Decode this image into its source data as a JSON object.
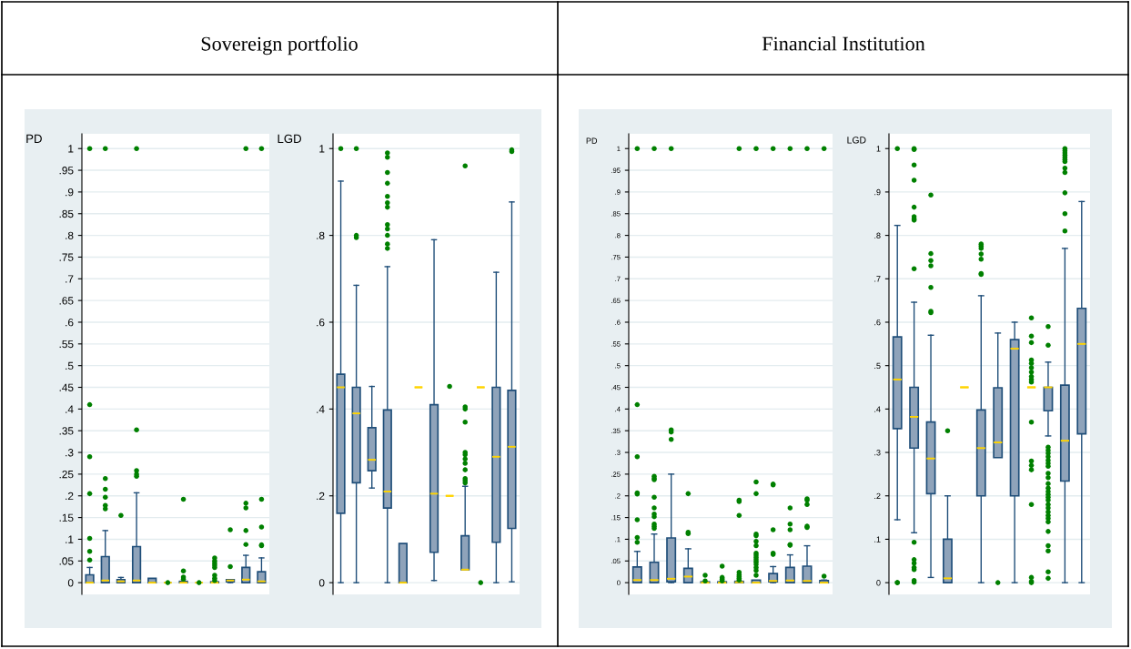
{
  "chart_data": [
    {
      "type": "box",
      "title": "Sovereign portfolio",
      "ylabel": "PD",
      "categories": [
        null,
        null,
        null,
        null,
        null,
        null,
        null,
        null,
        null,
        null,
        null,
        null
      ],
      "ylim": [
        -0.027,
        1.034
      ],
      "yticks": [
        0,
        {
          "value": 0.05,
          "label": ".05"
        },
        {
          "value": 0.1,
          "label": ".1"
        },
        {
          "value": 0.15,
          "label": ".15"
        },
        {
          "value": 0.2,
          "label": ".2"
        },
        {
          "value": 0.25,
          "label": ".25"
        },
        {
          "value": 0.3,
          "label": ".3"
        },
        {
          "value": 0.35,
          "label": ".35"
        },
        {
          "value": 0.4,
          "label": ".4"
        },
        {
          "value": 0.45,
          "label": ".45"
        },
        {
          "value": 0.5,
          "label": ".5"
        },
        {
          "value": 0.55,
          "label": ".55"
        },
        {
          "value": 0.6,
          "label": ".6"
        },
        {
          "value": 0.65,
          "label": ".65"
        },
        {
          "value": 0.7,
          "label": ".7"
        },
        {
          "value": 0.75,
          "label": ".75"
        },
        {
          "value": 0.8,
          "label": ".8"
        },
        {
          "value": 0.85,
          "label": ".85"
        },
        {
          "value": 0.9,
          "label": ".9"
        },
        {
          "value": 0.95,
          "label": ".95"
        },
        1
      ],
      "grid": "y",
      "tick_labels": "y",
      "colors": [
        "#8fa3ba",
        "#8fa3ba",
        "#8fa3ba",
        "#8fa3ba",
        "#8fa3ba",
        "#8fa3ba",
        "#8fa3ba",
        "#8fa3ba",
        "#8fa3ba",
        "#8fa3ba",
        "#8fa3ba",
        "#8fa3ba"
      ],
      "boxes": [
        {
          "low": 0,
          "q1": 0,
          "median": 0,
          "q3": 0.018,
          "high": 0.035,
          "outliers": [
            1,
            0.41,
            0.29,
            0.205,
            0.102,
            0.072,
            0.052
          ]
        },
        {
          "low": 0,
          "q1": 0,
          "median": 0.005,
          "q3": 0.06,
          "high": 0.12,
          "outliers": [
            1,
            0.24,
            0.215,
            0.197,
            0.178,
            0.17
          ]
        },
        {
          "low": 0,
          "q1": 0,
          "median": 0.003,
          "q3": 0.007,
          "high": 0.012,
          "outliers": [
            0.155
          ]
        },
        {
          "low": 0,
          "q1": 0,
          "median": 0.005,
          "q3": 0.083,
          "high": 0.207,
          "outliers": [
            1,
            0.352,
            0.258,
            0.25,
            0.245
          ]
        },
        {
          "low": 0,
          "q1": 0,
          "median": 0,
          "q3": 0.01,
          "high": 0.01
        },
        {
          "low": 0,
          "q1": 0,
          "median": 0,
          "q3": 0,
          "high": 0,
          "outliers": [
            0
          ]
        },
        {
          "low": 0,
          "q1": 0,
          "median": 0,
          "q3": 0.003,
          "high": 0.003,
          "outliers": [
            0.192,
            0.027,
            0.013,
            0.008
          ]
        },
        {
          "low": 0,
          "q1": 0,
          "median": 0,
          "q3": 0,
          "high": 0,
          "outliers": [
            0
          ]
        },
        {
          "low": 0,
          "q1": 0,
          "median": 0,
          "q3": 0.002,
          "high": 0.002,
          "outliers": [
            0.057,
            0.05,
            0.045,
            0.04,
            0.035,
            0.017,
            0.01,
            0.005
          ]
        },
        {
          "low": 0,
          "q1": 0.002,
          "median": 0.005,
          "q3": 0.007,
          "high": 0.007,
          "outliers": [
            0.122,
            0.037
          ]
        },
        {
          "low": 0,
          "q1": 0,
          "median": 0.007,
          "q3": 0.035,
          "high": 0.063,
          "outliers": [
            1,
            0.183,
            0.172,
            0.12,
            0.088
          ]
        },
        {
          "low": 0,
          "q1": 0,
          "median": 0.003,
          "q3": 0.025,
          "high": 0.057,
          "outliers": [
            1,
            0.192,
            0.128,
            0.087,
            0.085
          ]
        }
      ]
    },
    {
      "type": "box",
      "ylabel": "LGD",
      "categories": [
        null,
        null,
        null,
        null,
        null,
        null,
        null,
        null,
        null,
        null,
        null,
        null
      ],
      "ylim": [
        -0.027,
        1.034
      ],
      "yticks": [
        0,
        {
          "value": 0.2,
          "label": ".2"
        },
        {
          "value": 0.4,
          "label": ".4"
        },
        {
          "value": 0.6,
          "label": ".6"
        },
        {
          "value": 0.8,
          "label": ".8"
        },
        1
      ],
      "grid": "y",
      "tick_labels": "y",
      "colors": [
        "#8fa3ba",
        "#8fa3ba",
        "#8fa3ba",
        "#8fa3ba",
        "#8fa3ba",
        "#ffd400",
        "#8fa3ba",
        "#ffd400",
        "#8fa3ba",
        "#ffd400",
        "#8fa3ba",
        "#8fa3ba"
      ],
      "boxes": [
        {
          "low": 0,
          "q1": 0.16,
          "median": 0.45,
          "q3": 0.48,
          "high": 0.925,
          "outliers": [
            1
          ]
        },
        {
          "low": 0,
          "q1": 0.23,
          "median": 0.39,
          "q3": 0.45,
          "high": 0.685,
          "outliers": [
            1,
            0.8,
            0.795
          ]
        },
        {
          "low": 0.218,
          "q1": 0.258,
          "median": 0.283,
          "q3": 0.357,
          "high": 0.452
        },
        {
          "low": 0,
          "q1": 0.172,
          "median": 0.21,
          "q3": 0.398,
          "high": 0.728,
          "outliers": [
            0.99,
            0.98,
            0.945,
            0.92,
            0.89,
            0.875,
            0.865,
            0.825,
            0.815,
            0.8,
            0.78,
            0.77
          ]
        },
        {
          "low": 0,
          "q1": 0,
          "median": 0,
          "q3": 0.09,
          "high": 0.09
        },
        {
          "low": 0.45,
          "q1": 0.45,
          "median": 0.45,
          "q3": 0.45,
          "high": 0.45
        },
        {
          "low": 0.005,
          "q1": 0.07,
          "median": 0.205,
          "q3": 0.41,
          "high": 0.79
        },
        {
          "low": 0.2,
          "q1": 0.2,
          "median": 0.2,
          "q3": 0.2,
          "high": 0.2,
          "outliers": [
            0.452
          ]
        },
        {
          "low": 0.03,
          "q1": 0.03,
          "median": 0.03,
          "q3": 0.108,
          "high": 0.222,
          "outliers": [
            0.96,
            0.405,
            0.4,
            0.37,
            0.3,
            0.295,
            0.285,
            0.275,
            0.26,
            0.24,
            0.235,
            0.23
          ]
        },
        {
          "low": 0.45,
          "q1": 0.45,
          "median": 0.45,
          "q3": 0.45,
          "high": 0.45,
          "outliers": [
            0
          ]
        },
        {
          "low": 0,
          "q1": 0.093,
          "median": 0.29,
          "q3": 0.45,
          "high": 0.715
        },
        {
          "low": 0.002,
          "q1": 0.125,
          "median": 0.313,
          "q3": 0.443,
          "high": 0.877,
          "outliers": [
            0.997,
            0.993
          ]
        }
      ]
    },
    {
      "type": "box",
      "title": "Financial Institution",
      "ylabel": "PD",
      "categories": [
        null,
        null,
        null,
        null,
        null,
        null,
        null,
        null,
        null,
        null,
        null,
        null
      ],
      "ylim": [
        -0.027,
        1.034
      ],
      "yticks": [
        0,
        {
          "value": 0.05,
          "label": ".05"
        },
        {
          "value": 0.1,
          "label": ".1"
        },
        {
          "value": 0.15,
          "label": ".15"
        },
        {
          "value": 0.2,
          "label": ".2"
        },
        {
          "value": 0.25,
          "label": ".25"
        },
        {
          "value": 0.3,
          "label": ".3"
        },
        {
          "value": 0.35,
          "label": ".35"
        },
        {
          "value": 0.4,
          "label": ".4"
        },
        {
          "value": 0.45,
          "label": ".45"
        },
        {
          "value": 0.5,
          "label": ".5"
        },
        {
          "value": 0.55,
          "label": ".55"
        },
        {
          "value": 0.6,
          "label": ".6"
        },
        {
          "value": 0.65,
          "label": ".65"
        },
        {
          "value": 0.7,
          "label": ".7"
        },
        {
          "value": 0.75,
          "label": ".75"
        },
        {
          "value": 0.8,
          "label": ".8"
        },
        {
          "value": 0.85,
          "label": ".85"
        },
        {
          "value": 0.9,
          "label": ".9"
        },
        {
          "value": 0.95,
          "label": ".95"
        },
        1
      ],
      "grid": "y",
      "tick_labels": "y",
      "colors": [
        "#8fa3ba",
        "#8fa3ba",
        "#8fa3ba",
        "#8fa3ba",
        "#8fa3ba",
        "#8fa3ba",
        "#8fa3ba",
        "#8fa3ba",
        "#8fa3ba",
        "#8fa3ba",
        "#8fa3ba",
        "#8fa3ba"
      ],
      "boxes": [
        {
          "low": 0,
          "q1": 0,
          "median": 0.006,
          "q3": 0.036,
          "high": 0.072,
          "outliers": [
            1,
            0.41,
            0.29,
            0.207,
            0.204,
            0.145,
            0.104,
            0.093
          ]
        },
        {
          "low": 0,
          "q1": 0,
          "median": 0.006,
          "q3": 0.047,
          "high": 0.112,
          "outliers": [
            1,
            0.245,
            0.24,
            0.237,
            0.197,
            0.172,
            0.158,
            0.152,
            0.135,
            0.13,
            0.125
          ]
        },
        {
          "low": 0,
          "q1": 0.002,
          "median": 0.009,
          "q3": 0.103,
          "high": 0.25,
          "outliers": [
            1,
            0.352,
            0.347,
            0.33
          ]
        },
        {
          "low": 0,
          "q1": 0,
          "median": 0.014,
          "q3": 0.033,
          "high": 0.078,
          "outliers": [
            0.205,
            0.116,
            0.113
          ]
        },
        {
          "low": 0,
          "q1": 0,
          "median": 0,
          "q3": 0.002,
          "high": 0.002,
          "outliers": [
            0.017,
            0.004
          ]
        },
        {
          "low": 0,
          "q1": 0,
          "median": 0,
          "q3": 0.002,
          "high": 0.002,
          "outliers": [
            0.038,
            0.012,
            0.008,
            0.004
          ]
        },
        {
          "low": 0,
          "q1": 0,
          "median": 0.001,
          "q3": 0.003,
          "high": 0.003,
          "outliers": [
            1,
            0.19,
            0.187,
            0.155,
            0.024,
            0.018,
            0.014,
            0.01,
            0.006
          ]
        },
        {
          "low": 0,
          "q1": 0,
          "median": 0,
          "q3": 0.006,
          "high": 0.006,
          "outliers": [
            1,
            0.232,
            0.205,
            0.112,
            0.108,
            0.095,
            0.085,
            0.068,
            0.063,
            0.058,
            0.053,
            0.048,
            0.042,
            0.035,
            0.028,
            0.017
          ]
        },
        {
          "low": 0,
          "q1": 0.002,
          "median": 0.004,
          "q3": 0.021,
          "high": 0.037,
          "outliers": [
            1,
            0.227,
            0.225,
            0.122,
            0.068,
            0.065
          ]
        },
        {
          "low": 0,
          "q1": 0,
          "median": 0.005,
          "q3": 0.035,
          "high": 0.064,
          "outliers": [
            1,
            0.172,
            0.135,
            0.122,
            0.088,
            0.086
          ]
        },
        {
          "low": 0,
          "q1": 0,
          "median": 0.004,
          "q3": 0.038,
          "high": 0.085,
          "outliers": [
            1,
            0.193,
            0.19,
            0.18,
            0.13,
            0.127
          ]
        },
        {
          "low": 0,
          "q1": 0,
          "median": 0,
          "q3": 0.005,
          "high": 0.006,
          "outliers": [
            1,
            0.015
          ]
        }
      ]
    },
    {
      "type": "box",
      "ylabel": "LGD",
      "categories": [
        null,
        null,
        null,
        null,
        null,
        null,
        null,
        null,
        null,
        null,
        null,
        null
      ],
      "ylim": [
        -0.027,
        1.034
      ],
      "yticks": [
        0,
        {
          "value": 0.1,
          "label": ".1"
        },
        {
          "value": 0.2,
          "label": ".2"
        },
        {
          "value": 0.3,
          "label": ".3"
        },
        {
          "value": 0.4,
          "label": ".4"
        },
        {
          "value": 0.5,
          "label": ".5"
        },
        {
          "value": 0.6,
          "label": ".6"
        },
        {
          "value": 0.7,
          "label": ".7"
        },
        {
          "value": 0.8,
          "label": ".8"
        },
        {
          "value": 0.9,
          "label": ".9"
        },
        1
      ],
      "grid": "y",
      "tick_labels": "y",
      "colors": [
        "#8fa3ba",
        "#8fa3ba",
        "#8fa3ba",
        "#8fa3ba",
        "#ffd400",
        "#8fa3ba",
        "#8fa3ba",
        "#8fa3ba",
        "#ffd400",
        "#8fa3ba",
        "#8fa3ba",
        "#8fa3ba"
      ],
      "boxes": [
        {
          "low": 0.145,
          "q1": 0.355,
          "median": 0.468,
          "q3": 0.566,
          "high": 0.823,
          "outliers": [
            1,
            0,
            0
          ]
        },
        {
          "low": 0.115,
          "q1": 0.31,
          "median": 0.382,
          "q3": 0.45,
          "high": 0.646,
          "outliers": [
            1,
            0.998,
            0.962,
            0.927,
            0.865,
            0.843,
            0.838,
            0.835,
            0.723,
            0.093,
            0.053,
            0.045,
            0.035,
            0.03,
            0.005,
            0.001
          ]
        },
        {
          "low": 0.012,
          "q1": 0.205,
          "median": 0.286,
          "q3": 0.37,
          "high": 0.57,
          "outliers": [
            0.893,
            0.758,
            0.742,
            0.73,
            0.68,
            0.625,
            0.622
          ]
        },
        {
          "low": 0,
          "q1": 0,
          "median": 0.01,
          "q3": 0.1,
          "high": 0.2,
          "outliers": [
            0.35
          ]
        },
        {
          "low": 0.45,
          "q1": 0.45,
          "median": 0.45,
          "q3": 0.45,
          "high": 0.45
        },
        {
          "low": 0,
          "q1": 0.2,
          "median": 0.31,
          "q3": 0.398,
          "high": 0.661,
          "outliers": [
            0.78,
            0.775,
            0.77,
            0.757,
            0.745,
            0.712,
            0.71
          ]
        },
        {
          "low": 0.288,
          "q1": 0.288,
          "median": 0.323,
          "q3": 0.449,
          "high": 0.575,
          "outliers": [
            0
          ]
        },
        {
          "low": 0,
          "q1": 0.2,
          "median": 0.539,
          "q3": 0.56,
          "high": 0.6
        },
        {
          "low": 0.45,
          "q1": 0.45,
          "median": 0.45,
          "q3": 0.45,
          "high": 0.45,
          "outliers": [
            0.61,
            0.568,
            0.553,
            0.513,
            0.505,
            0.495,
            0.485,
            0.475,
            0.468,
            0.462,
            0.37,
            0.28,
            0.27,
            0.26,
            0.18,
            0.012,
            0.003,
            0
          ]
        },
        {
          "low": 0.338,
          "q1": 0.396,
          "median": 0.45,
          "q3": 0.45,
          "high": 0.508,
          "outliers": [
            0.59,
            0.547,
            0.312,
            0.305,
            0.298,
            0.29,
            0.282,
            0.275,
            0.268,
            0.252,
            0.242,
            0.228,
            0.218,
            0.21,
            0.203,
            0.197,
            0.19,
            0.18,
            0.172,
            0.163,
            0.155,
            0.148,
            0.14,
            0.118,
            0.085,
            0.073,
            0.025,
            0.01
          ]
        },
        {
          "low": 0,
          "q1": 0.234,
          "median": 0.327,
          "q3": 0.455,
          "high": 0.77,
          "outliers": [
            1,
            0.995,
            0.99,
            0.985,
            0.98,
            0.975,
            0.97,
            0.955,
            0.945,
            0.898,
            0.85,
            0.81
          ]
        },
        {
          "low": 0,
          "q1": 0.343,
          "median": 0.55,
          "q3": 0.632,
          "high": 0.878
        }
      ]
    }
  ]
}
